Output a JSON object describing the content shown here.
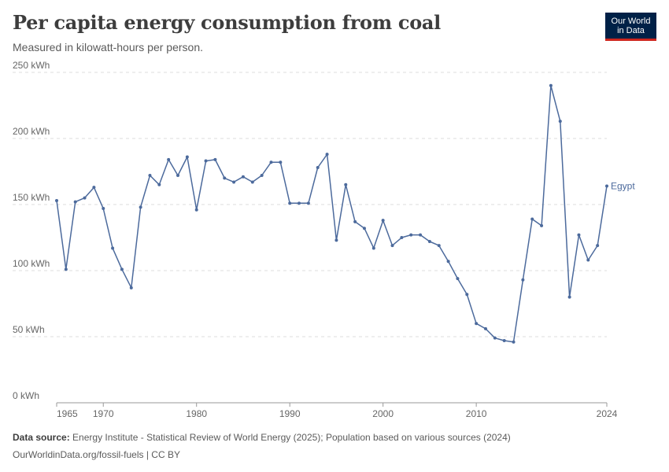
{
  "header": {
    "title": "Per capita energy consumption from coal",
    "subtitle": "Measured in kilowatt-hours per person."
  },
  "logo": {
    "line1": "Our World",
    "line2": "in Data"
  },
  "footer": {
    "source_label": "Data source:",
    "source_text": "Energy Institute - Statistical Review of World Energy (2025); Population based on various sources (2024)",
    "url_text": "OurWorldinData.org/fossil-fuels | CC BY"
  },
  "colors": {
    "series": "#4c6a9c",
    "logo_bg": "#002147",
    "logo_accent": "#ce261e"
  },
  "chart_data": {
    "type": "line",
    "title": "Per capita energy consumption from coal",
    "subtitle": "Measured in kilowatt-hours per person.",
    "ylim": [
      0,
      250
    ],
    "xlim": [
      1965,
      2024
    ],
    "y_ticks": [
      0,
      50,
      100,
      150,
      200,
      250
    ],
    "y_tick_labels": [
      "0 kWh",
      "50 kWh",
      "100 kWh",
      "150 kWh",
      "200 kWh",
      "250 kWh"
    ],
    "x_ticks": [
      1965,
      1970,
      1980,
      1990,
      2000,
      2010,
      2024
    ],
    "x_tick_labels": [
      "1965",
      "1970",
      "1980",
      "1990",
      "2000",
      "2010",
      "2024"
    ],
    "grid": "horizontal dashed",
    "series": [
      {
        "name": "Egypt",
        "x": [
          1965,
          1966,
          1967,
          1968,
          1969,
          1970,
          1971,
          1972,
          1973,
          1974,
          1975,
          1976,
          1977,
          1978,
          1979,
          1980,
          1981,
          1982,
          1983,
          1984,
          1985,
          1986,
          1987,
          1988,
          1989,
          1990,
          1991,
          1992,
          1993,
          1994,
          1995,
          1996,
          1997,
          1998,
          1999,
          2000,
          2001,
          2002,
          2003,
          2004,
          2005,
          2006,
          2007,
          2008,
          2009,
          2010,
          2011,
          2012,
          2013,
          2014,
          2015,
          2016,
          2017,
          2018,
          2019,
          2020,
          2021,
          2022,
          2023,
          2024
        ],
        "y": [
          153,
          101,
          152,
          155,
          163,
          147,
          117,
          101,
          87,
          148,
          172,
          165,
          184,
          172,
          186,
          146,
          183,
          184,
          170,
          167,
          171,
          167,
          172,
          182,
          182,
          151,
          151,
          151,
          178,
          188,
          123,
          165,
          137,
          132,
          117,
          138,
          119,
          125,
          127,
          127,
          122,
          119,
          107,
          94,
          82,
          60,
          56,
          49,
          47,
          46,
          93,
          139,
          134,
          240,
          213,
          80,
          127,
          108,
          119,
          164
        ]
      }
    ]
  }
}
